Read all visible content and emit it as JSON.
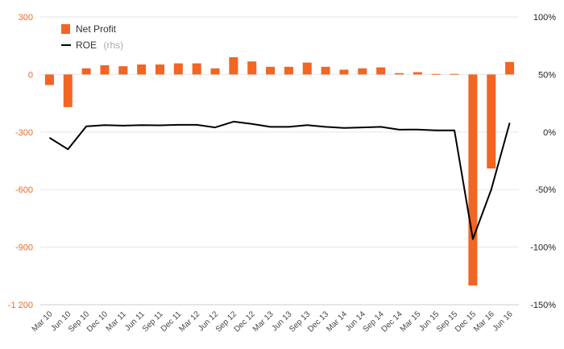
{
  "chart_data": {
    "type": "bar",
    "categories": [
      "Mar 10",
      "Jun 10",
      "Sep 10",
      "Dec 10",
      "Mar 11",
      "Jun 11",
      "Sep 11",
      "Dec 11",
      "Mar 12",
      "Jun 12",
      "Sep 12",
      "Dec 12",
      "Mar 13",
      "Jun 13",
      "Sep 13",
      "Dec 13",
      "Mar 14",
      "Jun 14",
      "Sep 14",
      "Dec 14",
      "Mar 15",
      "Jun 15",
      "Sep 15",
      "Dec 15",
      "Mar 16",
      "Jun 16"
    ],
    "series": [
      {
        "name": "Net Profit",
        "type": "bar",
        "axis": "left",
        "color": "#f26522",
        "values": [
          -55,
          -170,
          32,
          48,
          43,
          52,
          52,
          58,
          58,
          32,
          90,
          68,
          40,
          40,
          62,
          40,
          25,
          32,
          37,
          7,
          12,
          3,
          3,
          -1100,
          -490,
          65
        ]
      },
      {
        "name": "ROE",
        "name_suffix": "(rhs)",
        "type": "line",
        "axis": "right",
        "color": "#000000",
        "values": [
          -5,
          -15,
          5,
          6,
          5.5,
          6,
          5.8,
          6.2,
          6.2,
          4,
          9,
          7,
          4.5,
          4.5,
          6,
          4.5,
          3.5,
          4,
          4.5,
          2,
          2.2,
          1.5,
          1.5,
          -93,
          -50,
          8
        ]
      }
    ],
    "left_axis": {
      "ylim": [
        -1200,
        300
      ],
      "ticks": [
        300,
        0,
        -300,
        -600,
        -900,
        -1200
      ],
      "tick_labels": [
        "300",
        "0",
        "-300",
        "-600",
        "-900",
        "-1 200"
      ],
      "color": "#f26522"
    },
    "right_axis": {
      "ylim": [
        -150,
        100
      ],
      "ticks": [
        100,
        50,
        0,
        -50,
        -100,
        -150
      ],
      "tick_labels": [
        "100%",
        "50%",
        "0%",
        "-50%",
        "-100%",
        "-150%"
      ]
    },
    "legend": {
      "placement": "top-left"
    },
    "grid": true,
    "title": "",
    "xlabel": "",
    "ylabel": ""
  }
}
